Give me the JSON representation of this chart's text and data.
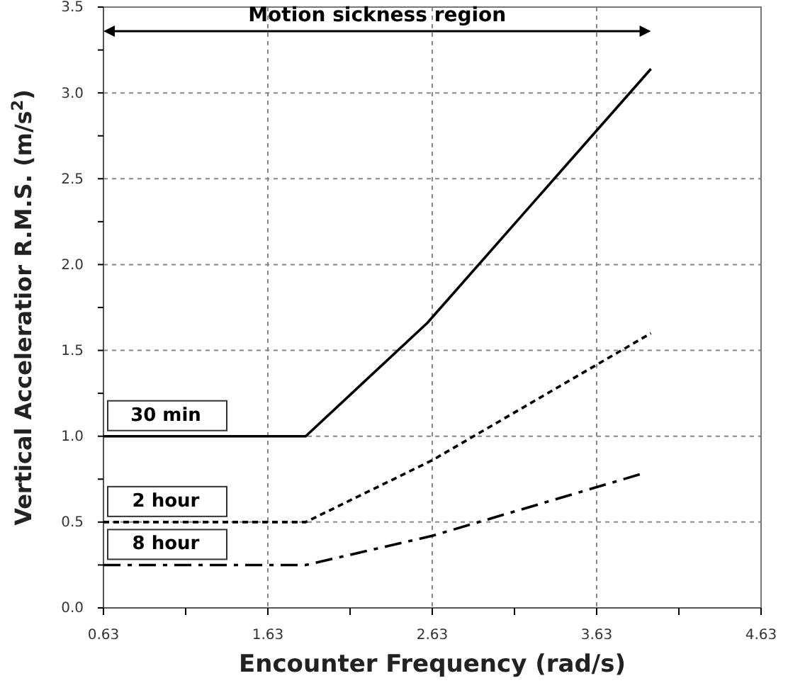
{
  "chart_data": {
    "type": "line",
    "xlabel": "Encounter Frequency (rad/s)",
    "ylabel": "Vertical Acceleratior R.M.S. (m/s$^{2}$)",
    "xlim": [
      0.63,
      4.63
    ],
    "ylim": [
      0,
      3.5
    ],
    "xticks": [
      0.63,
      {
        "value": 1.13,
        "label": null
      },
      1.63,
      {
        "value": 2.13,
        "label": null
      },
      2.63,
      {
        "value": 3.13,
        "label": null
      },
      3.63,
      {
        "value": 4.13,
        "label": null
      },
      4.63
    ],
    "yticks": [
      {
        "value": 0,
        "label": "0.0"
      },
      {
        "value": 0.25,
        "label": null
      },
      {
        "value": 0.5,
        "label": "0.5"
      },
      {
        "value": 0.75,
        "label": null
      },
      {
        "value": 1,
        "label": "1.0"
      },
      {
        "value": 1.25,
        "label": null
      },
      {
        "value": 1.5,
        "label": "1.5"
      },
      {
        "value": 1.75,
        "label": null
      },
      {
        "value": 2,
        "label": "2.0"
      },
      {
        "value": 2.25,
        "label": null
      },
      {
        "value": 2.5,
        "label": "2.5"
      },
      {
        "value": 2.75,
        "label": null
      },
      {
        "value": 3,
        "label": "3.0"
      },
      {
        "value": 3.25,
        "label": null
      },
      {
        "value": 3.5,
        "label": "3.5"
      }
    ],
    "grid": true,
    "legend": false,
    "marker": "none",
    "annotations": [
      "Motion sickness region"
    ],
    "series": [
      {
        "name": "30 min",
        "color": "#000000",
        "line_style": "solid",
        "x": [
          0.63,
          1.86,
          2.6,
          3.96
        ],
        "values": [
          1.0,
          1.0,
          1.66,
          3.14
        ]
      },
      {
        "name": "2 hour",
        "color": "#000000",
        "line_style": "dashed",
        "x": [
          0.63,
          1.86,
          2.63,
          3.96
        ],
        "values": [
          0.5,
          0.5,
          0.86,
          1.6
        ]
      },
      {
        "name": "8 hour",
        "color": "#000000",
        "line_style": "dashdot",
        "x": [
          0.63,
          1.86,
          2.63,
          3.9
        ],
        "values": [
          0.25,
          0.25,
          0.42,
          0.78
        ]
      }
    ]
  }
}
